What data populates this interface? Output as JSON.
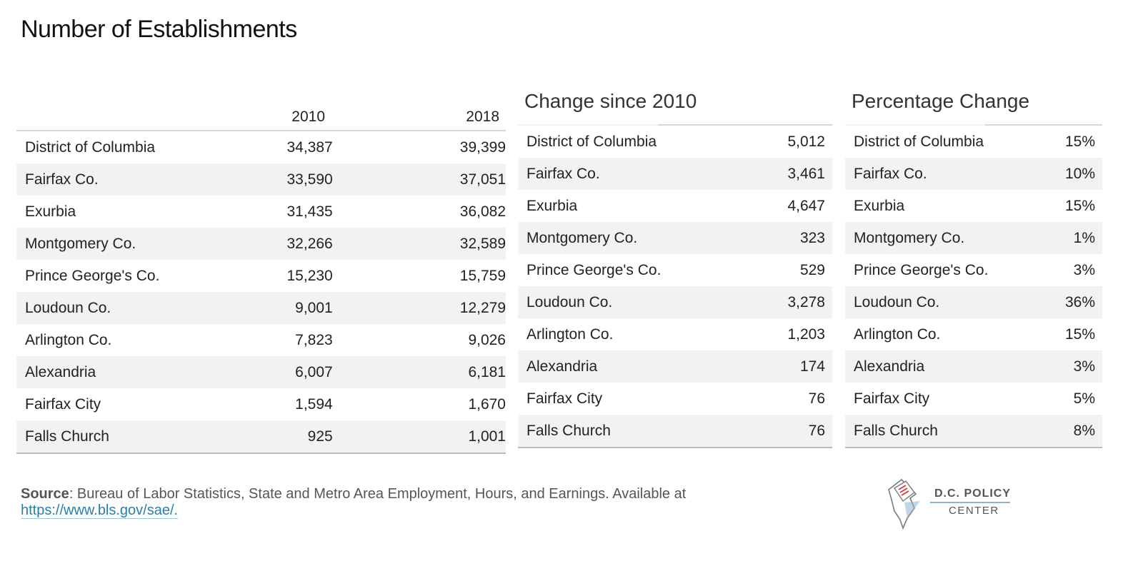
{
  "chart_data": {
    "type": "table",
    "title": "Number of Establishments",
    "tables": [
      {
        "id": "levels",
        "title": "",
        "columns": [
          "2010",
          "2018"
        ],
        "rows": [
          {
            "name": "District of Columbia",
            "values": [
              "34,387",
              "39,399"
            ]
          },
          {
            "name": "Fairfax Co.",
            "values": [
              "33,590",
              "37,051"
            ]
          },
          {
            "name": "Exurbia",
            "values": [
              "31,435",
              "36,082"
            ]
          },
          {
            "name": "Montgomery Co.",
            "values": [
              "32,266",
              "32,589"
            ]
          },
          {
            "name": "Prince George's Co.",
            "values": [
              "15,230",
              "15,759"
            ]
          },
          {
            "name": "Loudoun Co.",
            "values": [
              "9,001",
              "12,279"
            ]
          },
          {
            "name": "Arlington Co.",
            "values": [
              "7,823",
              "9,026"
            ]
          },
          {
            "name": "Alexandria",
            "values": [
              "6,007",
              "6,181"
            ]
          },
          {
            "name": "Fairfax City",
            "values": [
              "1,594",
              "1,670"
            ]
          },
          {
            "name": "Falls Church",
            "values": [
              "925",
              "1,001"
            ]
          }
        ]
      },
      {
        "id": "change",
        "title": "Change since 2010",
        "rows": [
          {
            "name": "District of Columbia",
            "value": "5,012"
          },
          {
            "name": "Fairfax Co.",
            "value": "3,461"
          },
          {
            "name": "Exurbia",
            "value": "4,647"
          },
          {
            "name": "Montgomery Co.",
            "value": "323"
          },
          {
            "name": "Prince George's Co.",
            "value": "529"
          },
          {
            "name": "Loudoun Co.",
            "value": "3,278"
          },
          {
            "name": "Arlington Co.",
            "value": "1,203"
          },
          {
            "name": "Alexandria",
            "value": "174"
          },
          {
            "name": "Fairfax City",
            "value": "76"
          },
          {
            "name": "Falls Church",
            "value": "76"
          }
        ]
      },
      {
        "id": "pct",
        "title": "Percentage Change",
        "rows": [
          {
            "name": "District of Columbia",
            "value": "15%"
          },
          {
            "name": "Fairfax Co.",
            "value": "10%"
          },
          {
            "name": "Exurbia",
            "value": "15%"
          },
          {
            "name": "Montgomery Co.",
            "value": "1%"
          },
          {
            "name": "Prince George's Co.",
            "value": "3%"
          },
          {
            "name": "Loudoun Co.",
            "value": "36%"
          },
          {
            "name": "Arlington Co.",
            "value": "15%"
          },
          {
            "name": "Alexandria",
            "value": "3%"
          },
          {
            "name": "Fairfax City",
            "value": "5%"
          },
          {
            "name": "Falls Church",
            "value": "8%"
          }
        ]
      }
    ]
  },
  "source": {
    "label": "Source",
    "text": ": Bureau of Labor Statistics, State and Metro Area Employment, Hours, and Earnings. Available at",
    "link": "https://www.bls.gov/sae/."
  },
  "logo": {
    "line1": "D.C. POLICY",
    "line2": "CENTER",
    "icon": "dc-map-document-icon"
  },
  "colors": {
    "row_shade": "#f2f2f2",
    "rule": "#bdbdbd",
    "link": "#2a7fa6",
    "logo_red": "#d9373c",
    "logo_blue": "#8fb3cc"
  }
}
